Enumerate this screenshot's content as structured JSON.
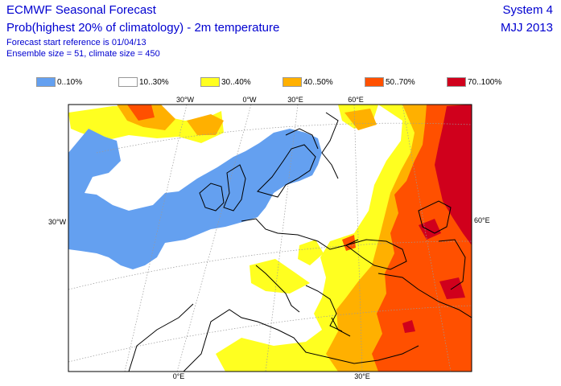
{
  "header": {
    "title": "ECMWF Seasonal Forecast",
    "subtitle": "Prob(highest 20% of climatology) - 2m temperature",
    "forecast_start": "Forecast start reference is 01/04/13",
    "ensemble": "Ensemble size = 51, climate size = 450",
    "system": "System 4",
    "period": "MJJ 2013"
  },
  "legend": [
    {
      "label": "0..10%",
      "color": "#64a0f0"
    },
    {
      "label": "10..30%",
      "color": "#ffffff"
    },
    {
      "label": "30..40%",
      "color": "#ffff20"
    },
    {
      "label": "40..50%",
      "color": "#ffb000"
    },
    {
      "label": "50..70%",
      "color": "#ff5000"
    },
    {
      "label": "70..100%",
      "color": "#d0001c"
    }
  ],
  "axis_labels": {
    "lon_top": [
      "30°W",
      "0°W",
      "30°E",
      "60°E"
    ],
    "lon_bottom": [
      "0°E",
      "30°E"
    ],
    "lat_left": "30°W",
    "lat_right": "60°E"
  }
}
